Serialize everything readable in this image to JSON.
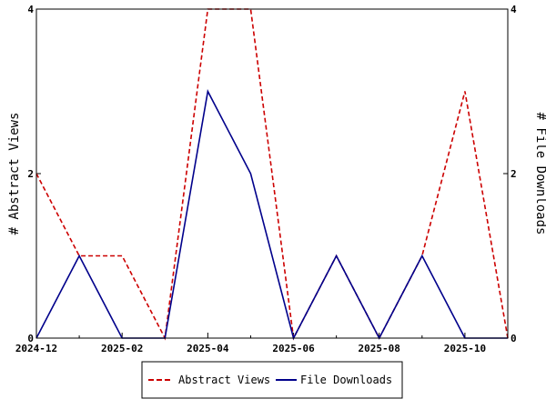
{
  "chart_data": {
    "type": "line",
    "x": [
      "2024-12",
      "2025-01",
      "2025-02",
      "2025-03",
      "2025-04",
      "2025-05",
      "2025-06",
      "2025-07",
      "2025-08",
      "2025-09",
      "2025-10",
      "2025-11"
    ],
    "x_tick_labels": [
      "2024-12",
      "2025-02",
      "2025-04",
      "2025-06",
      "2025-08",
      "2025-10"
    ],
    "y_tick_labels": [
      "0",
      "2",
      "4"
    ],
    "ylabel_left": "# Abstract Views",
    "ylabel_right": "# File Downloads",
    "ylim": [
      0,
      4
    ],
    "grid": false,
    "legend_position": "bottom",
    "series": [
      {
        "name": "Abstract Views",
        "axis": "left",
        "color": "#cc0000",
        "dash": "dashed",
        "values": [
          2,
          1,
          1,
          0,
          4,
          4,
          0,
          1,
          0,
          1,
          3,
          0
        ]
      },
      {
        "name": "File Downloads",
        "axis": "right",
        "color": "#00008b",
        "dash": "solid",
        "values": [
          0,
          1,
          0,
          0,
          3,
          2,
          0,
          1,
          0,
          1,
          0,
          0
        ]
      }
    ]
  }
}
